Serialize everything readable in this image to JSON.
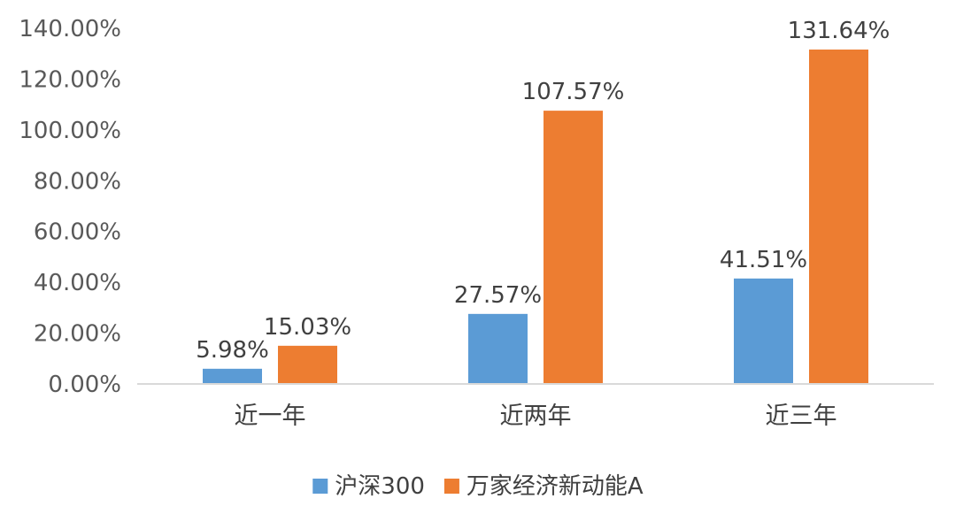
{
  "chart_data": {
    "type": "bar",
    "title": "",
    "xlabel": "",
    "ylabel": "",
    "categories": [
      "近一年",
      "近两年",
      "近三年"
    ],
    "series": [
      {
        "name": "沪深300",
        "color": "#5B9BD5",
        "values": [
          5.98,
          27.57,
          41.51
        ],
        "labels": [
          "5.98%",
          "27.57%",
          "41.51%"
        ]
      },
      {
        "name": "万家经济新动能A",
        "color": "#ED7D31",
        "values": [
          15.03,
          107.57,
          131.64
        ],
        "labels": [
          "15.03%",
          "107.57%",
          "131.64%"
        ]
      }
    ],
    "ylim": [
      0,
      140
    ],
    "yticks": [
      0,
      20,
      40,
      60,
      80,
      100,
      120,
      140
    ],
    "ytick_labels": [
      "0.00%",
      "20.00%",
      "40.00%",
      "60.00%",
      "80.00%",
      "100.00%",
      "120.00%",
      "140.00%"
    ],
    "grid": false,
    "legend_position": "bottom"
  }
}
